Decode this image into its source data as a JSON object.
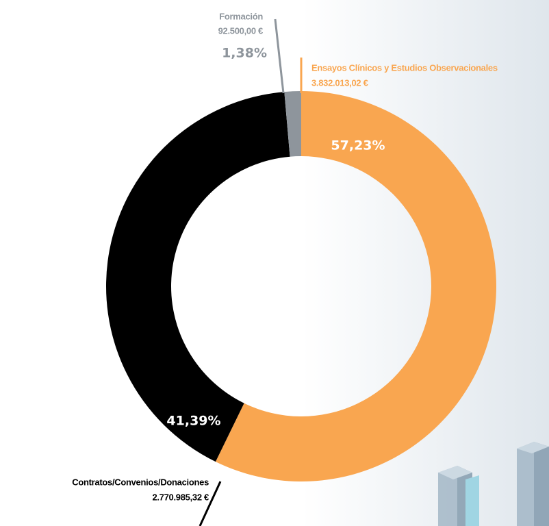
{
  "chart_data": {
    "type": "donut",
    "categories": [
      "Ensayos Clínicos y Estudios Observacionales",
      "Contratos/Convenios/Donaciones",
      "Formación"
    ],
    "amount_labels": [
      "3.832.013,02 €",
      "2.770.985,32 €",
      "92.500,00 €"
    ],
    "values": [
      57.23,
      41.39,
      1.38
    ],
    "value_labels": [
      "57,23%",
      "41,39%",
      "1,38%"
    ],
    "colors": [
      "#f9a650",
      "#000000",
      "#8e959c"
    ]
  }
}
